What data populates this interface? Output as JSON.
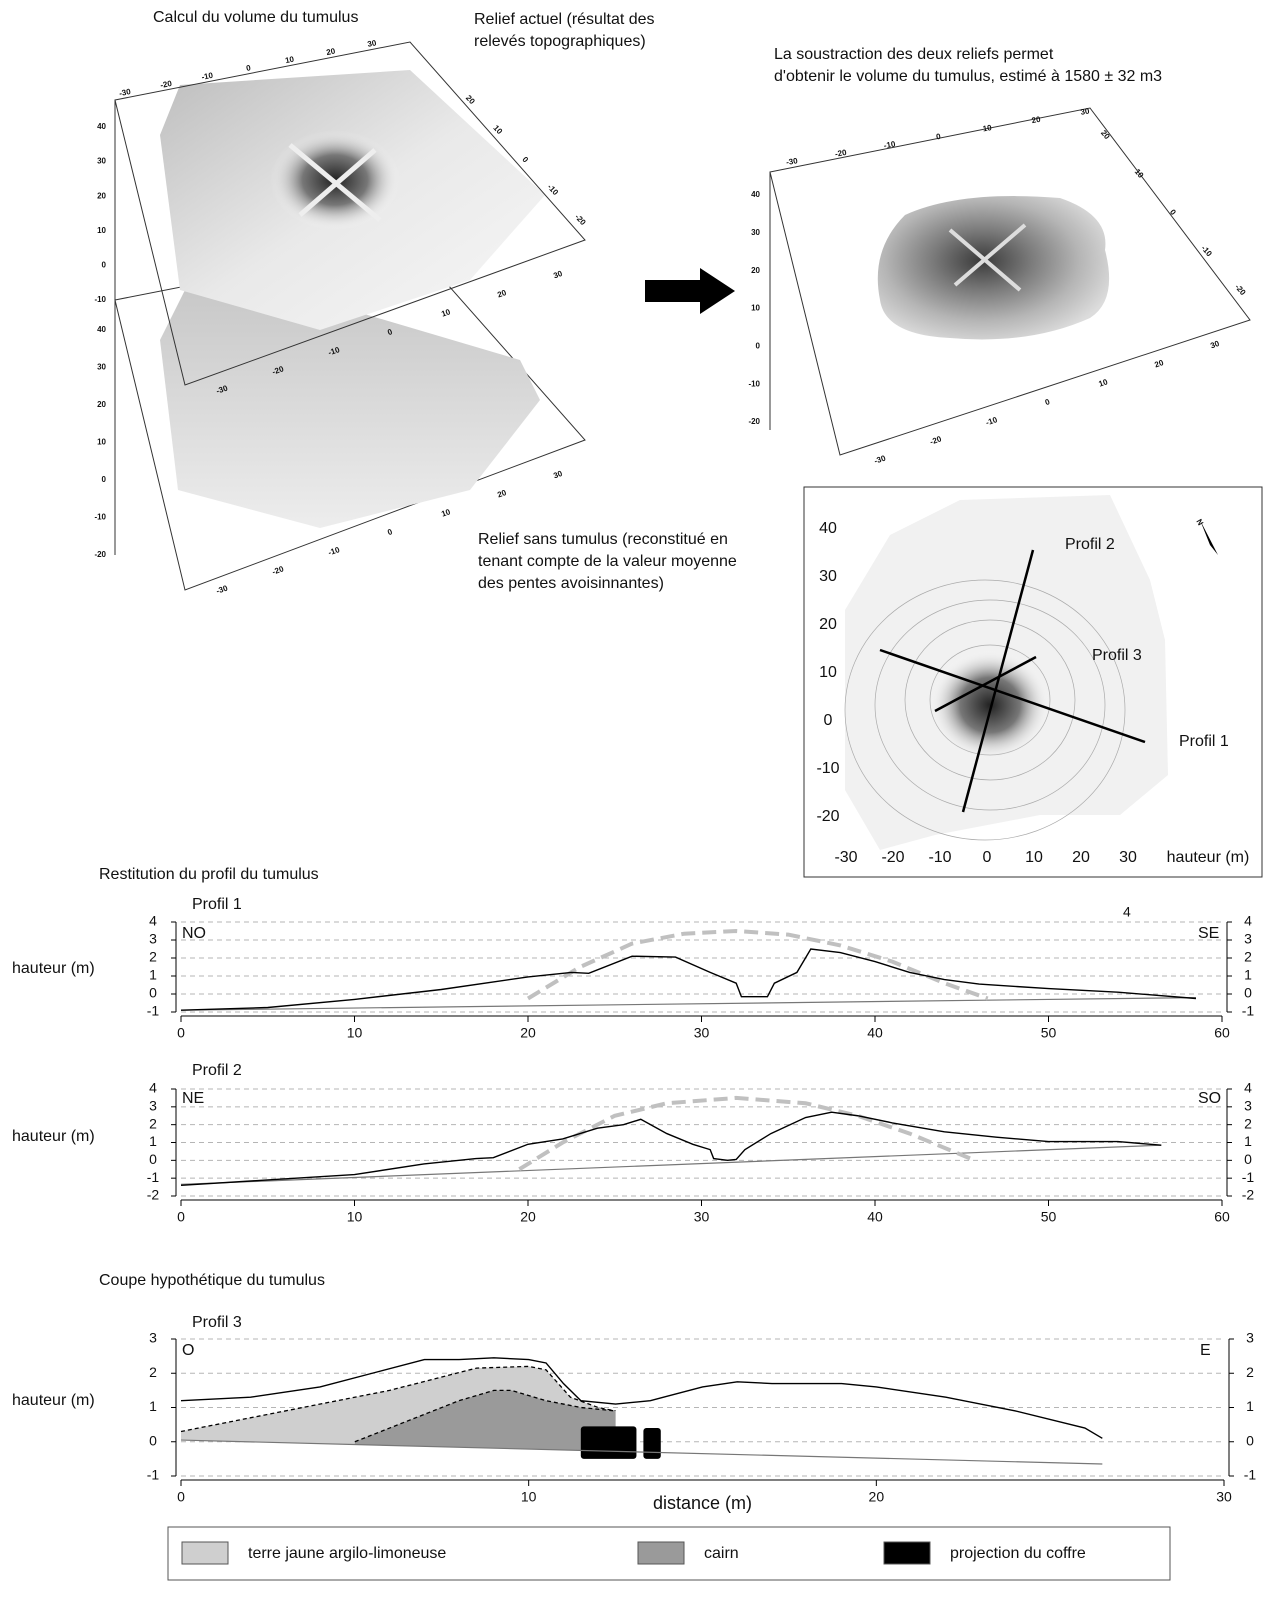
{
  "header": {
    "title": "Calcul du volume du tumulus"
  },
  "relief_actuel": {
    "caption": [
      "Relief actuel (résultat des",
      "relevés topographiques)"
    ],
    "axes": {
      "left": [
        40,
        30,
        20,
        10,
        0,
        -10
      ],
      "top": [
        -30,
        -20,
        -10,
        0,
        10,
        20,
        30
      ],
      "right": [
        20,
        10,
        0,
        -10,
        -20
      ],
      "front": [
        -30,
        -20,
        -10,
        0,
        10,
        20,
        30
      ]
    }
  },
  "relief_sans_tumulus": {
    "caption": [
      "Relief sans tumulus (reconstitué en",
      "tenant compte de la valeur moyenne",
      "des pentes avoisinnantes)"
    ],
    "axes": {
      "left": [
        40,
        30,
        20,
        10,
        0,
        -10,
        -20
      ],
      "front": [
        -30,
        -20,
        -10,
        0,
        10,
        20,
        30
      ]
    }
  },
  "volume_tumulus": {
    "caption": [
      "La soustraction des deux reliefs permet",
      "d'obtenir le volume du tumulus, estimé à 1580 ± 32 m3"
    ],
    "axes": {
      "left": [
        40,
        30,
        20,
        10,
        0,
        -10,
        -20
      ],
      "top": [
        -30,
        -20,
        -10,
        0,
        10,
        20,
        30
      ],
      "right": [
        20,
        10,
        0,
        -10,
        -20
      ],
      "front": [
        -30,
        -20,
        -10,
        0,
        10,
        20,
        30
      ]
    }
  },
  "map": {
    "yticks": [
      40,
      30,
      20,
      10,
      0,
      -10,
      -20
    ],
    "xticks": [
      -30,
      -20,
      -10,
      0,
      10,
      20,
      30
    ],
    "xlabel": "hauteur (m)",
    "profiles": [
      "Profil 1",
      "Profil 2",
      "Profil 3"
    ],
    "north": "N"
  },
  "sections": [
    "Restitution du profil du tumulus",
    "Coupe hypothétique du tumulus"
  ],
  "chart_data": [
    {
      "type": "line",
      "title": "Profil 1",
      "ylabel": "hauteur (m)",
      "left_label": "NO",
      "right_label": "SE",
      "annotation": "4",
      "xlim": [
        0,
        60
      ],
      "xticks": [
        0,
        10,
        20,
        30,
        40,
        50,
        60
      ],
      "ylim": [
        -1,
        4
      ],
      "yticks": [
        -1,
        0,
        1,
        2,
        3,
        4
      ],
      "grid": true,
      "series": [
        {
          "kind": "line",
          "style": "thin",
          "color": "#777777",
          "x": [
            0,
            58.5
          ],
          "values": [
            -0.9,
            -0.2
          ]
        },
        {
          "kind": "line",
          "style": "dashed",
          "color": "#c0c0c0",
          "x": [
            20,
            23,
            26,
            29,
            32,
            35,
            38,
            41,
            44,
            46.5
          ],
          "values": [
            -0.25,
            1.5,
            2.8,
            3.35,
            3.5,
            3.3,
            2.7,
            1.8,
            0.6,
            -0.25
          ]
        },
        {
          "kind": "line",
          "style": "solid",
          "color": "#000000",
          "x": [
            0,
            5,
            10,
            15,
            20,
            22.5,
            23.5,
            26,
            28.5,
            30.5,
            32,
            32.3,
            33.8,
            34.2,
            35.5,
            36.3,
            38,
            40,
            42,
            44,
            46,
            50,
            54,
            58.5
          ],
          "values": [
            -0.9,
            -0.75,
            -0.3,
            0.25,
            0.95,
            1.2,
            1.15,
            2.1,
            2.05,
            1.2,
            0.6,
            -0.15,
            -0.15,
            0.6,
            1.2,
            2.5,
            2.3,
            1.8,
            1.2,
            0.8,
            0.55,
            0.3,
            0.1,
            -0.25
          ]
        }
      ]
    },
    {
      "type": "line",
      "title": "Profil 2",
      "ylabel": "hauteur (m)",
      "left_label": "NE",
      "right_label": "SO",
      "xlim": [
        0,
        60
      ],
      "xticks": [
        0,
        10,
        20,
        30,
        40,
        50,
        60
      ],
      "ylim": [
        -2,
        4
      ],
      "yticks": [
        -2,
        -1,
        0,
        1,
        2,
        3,
        4
      ],
      "grid": true,
      "series": [
        {
          "kind": "line",
          "style": "thin",
          "color": "#777777",
          "x": [
            0,
            56.5
          ],
          "values": [
            -1.35,
            0.85
          ]
        },
        {
          "kind": "line",
          "style": "dashed",
          "color": "#c0c0c0",
          "x": [
            19.5,
            22,
            25,
            28,
            32,
            36,
            39,
            42,
            45.5
          ],
          "values": [
            -0.5,
            1,
            2.5,
            3.2,
            3.5,
            3.2,
            2.5,
            1.5,
            0.1
          ]
        },
        {
          "kind": "line",
          "style": "solid",
          "color": "#000000",
          "x": [
            0,
            5,
            10,
            14,
            17,
            18,
            20,
            22,
            24,
            25.5,
            26.5,
            28,
            29.5,
            30.5,
            30.7,
            31.5,
            32,
            32.5,
            34,
            36,
            37.5,
            39,
            41,
            44,
            47,
            50,
            54,
            56.5
          ],
          "values": [
            -1.4,
            -1.1,
            -0.8,
            -0.2,
            0.1,
            0.15,
            0.9,
            1.2,
            1.8,
            2.0,
            2.3,
            1.5,
            0.9,
            0.6,
            0.1,
            0,
            0.05,
            0.6,
            1.5,
            2.4,
            2.7,
            2.5,
            2.1,
            1.6,
            1.3,
            1.05,
            1.05,
            0.85
          ]
        }
      ]
    },
    {
      "type": "line",
      "title": "Profil 3",
      "ylabel": "hauteur (m)",
      "xlabel": "distance (m)",
      "left_label": "O",
      "right_label": "E",
      "xlim": [
        0,
        30
      ],
      "xticks": [
        0,
        10,
        20,
        30
      ],
      "ylim": [
        -1,
        3
      ],
      "yticks": [
        -1,
        0,
        1,
        2,
        3
      ],
      "grid": true,
      "series": [
        {
          "name": "terre jaune argilo-limoneuse",
          "kind": "area",
          "style": "dashed",
          "color": "#cfcfcf",
          "x": [
            0,
            3,
            6,
            8.5,
            10,
            10.5,
            11.2,
            12,
            12.5
          ],
          "values": [
            0.3,
            0.9,
            1.5,
            2.15,
            2.2,
            2.1,
            1.3,
            1.0,
            0.9
          ]
        },
        {
          "name": "cairn",
          "kind": "area",
          "style": "dashed",
          "color": "#9a9a9a",
          "x": [
            5,
            6.5,
            8,
            9,
            9.5,
            10.5,
            11.5,
            12.5
          ],
          "values": [
            0,
            0.6,
            1.2,
            1.5,
            1.5,
            1.2,
            1.0,
            0.9
          ]
        },
        {
          "name": "projection du coffre",
          "kind": "blocks",
          "color": "#000000",
          "x": [
            [
              11.5,
              13.1
            ],
            [
              13.3,
              13.8
            ]
          ],
          "values": [
            [
              -0.5,
              0.45
            ],
            [
              -0.5,
              0.4
            ]
          ]
        },
        {
          "kind": "line",
          "style": "thin",
          "color": "#777777",
          "x": [
            0,
            26.5
          ],
          "values": [
            0.05,
            -0.65
          ]
        },
        {
          "kind": "line",
          "style": "solid",
          "color": "#000000",
          "x": [
            0,
            2,
            4,
            5.5,
            7,
            8,
            9,
            10,
            10.5,
            11,
            11.5,
            12.5,
            13.5,
            15,
            16,
            17,
            19,
            20,
            22,
            24,
            26,
            26.5
          ],
          "values": [
            1.2,
            1.3,
            1.6,
            2.0,
            2.4,
            2.4,
            2.45,
            2.4,
            2.3,
            1.7,
            1.2,
            1.1,
            1.2,
            1.6,
            1.75,
            1.7,
            1.7,
            1.6,
            1.3,
            0.9,
            0.4,
            0.1
          ]
        }
      ]
    }
  ]
}
